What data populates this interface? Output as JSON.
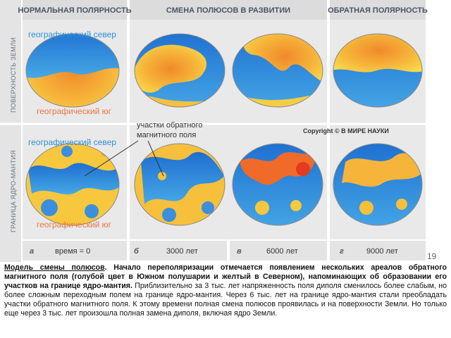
{
  "figure": {
    "headers": [
      "НОРМАЛЬНАЯ ПОЛЯРНОСТЬ",
      "СМЕНА ПОЛЮСОВ В РАЗВИТИИ",
      "ОБРАТНАЯ ПОЛЯРНОСТЬ"
    ],
    "row_labels": [
      "ПОВЕРХНОСТЬ ЗЕМЛИ",
      "ГРАНИЦА ЯДРО-МАНТИЯ"
    ],
    "north_top": "географический север",
    "south_top": "географический юг",
    "north_bottom": "географический север",
    "south_bottom": "географический юг",
    "annotation": [
      "участки обратного",
      "магнитного поля"
    ],
    "copyright": "Copyright © В МИРЕ НАУКИ",
    "panels": [
      {
        "letter": "а",
        "time": "время = 0"
      },
      {
        "letter": "б",
        "time": "3000 лет"
      },
      {
        "letter": "в",
        "time": "6000 лет"
      },
      {
        "letter": "г",
        "time": "9000 лет"
      }
    ]
  },
  "page_number": "19",
  "caption": {
    "title": "Модель смены полюсов",
    "bold": ". Начало переполяризации отмечается появлением нескольких ареалов обратного магнитного поля (голубой цвет в Южном полушарии и желтый в Северном), напоминающих об образовании его участков на границе ядро-мантия.",
    "text": "Приблизительно за 3 тыс. лет напряженность поля диполя сменилось более слабым, но более сложным переходным полем на границе ядро-мантия. Через 6 тыс. лет на границе ядро-мантия стали преобладать участки обратного магнитного поля. К этому времени полная смена полюсов проявилась и на поверхности Земли. Но только еще через 3 тыс. лет произошла полная замена диполя, включая ядро Земли."
  }
}
